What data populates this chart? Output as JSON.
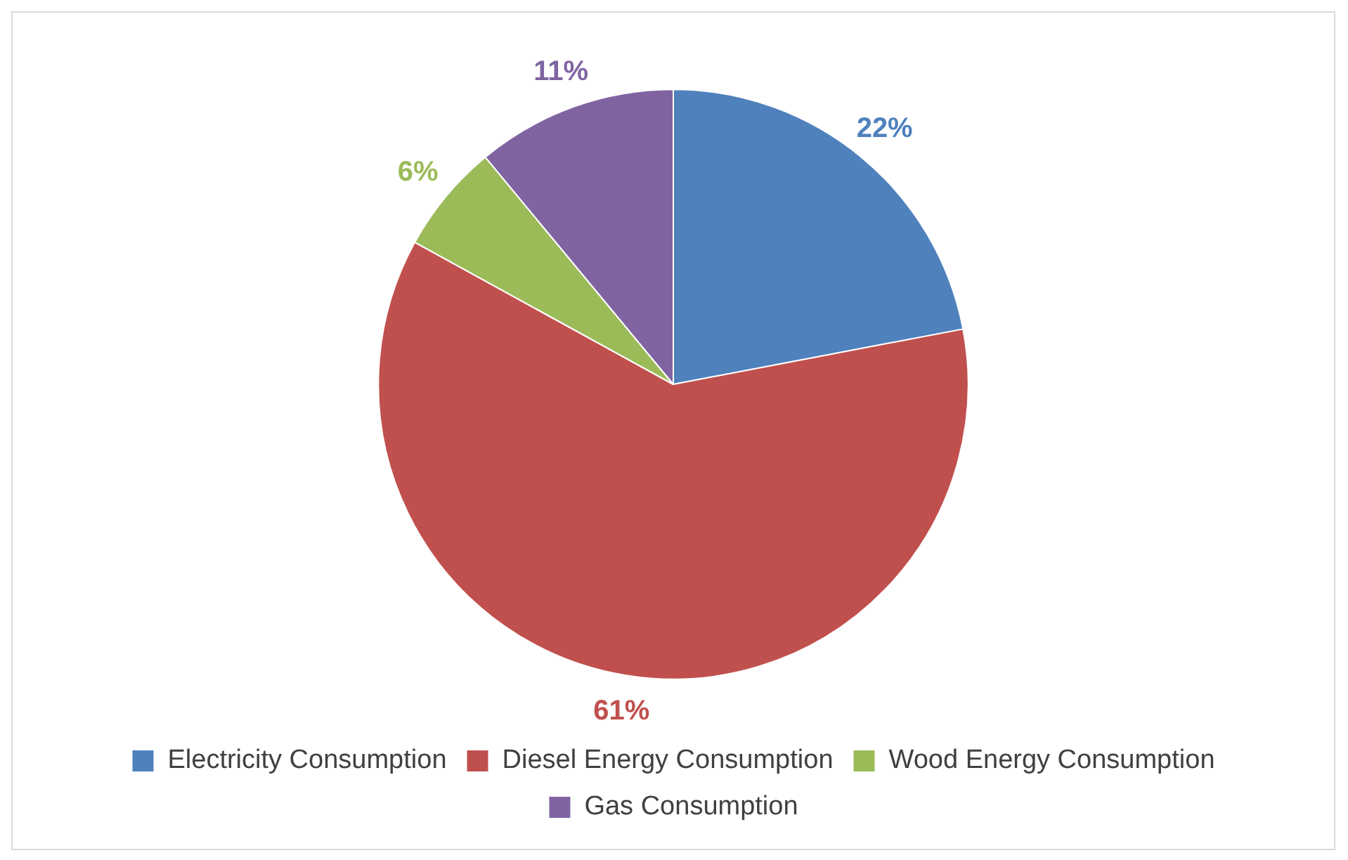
{
  "chart_data": {
    "type": "pie",
    "categories": [
      "Electricity Consumption",
      "Diesel Energy Consumption",
      "Wood Energy Consumption",
      "Gas Consumption"
    ],
    "values": [
      22,
      61,
      6,
      11
    ],
    "colors": [
      "#4f81bd",
      "#c0504d",
      "#9bbb59",
      "#8064a2"
    ],
    "value_labels": [
      "22%",
      "61%",
      "6%",
      "11%"
    ],
    "legend": "bottom"
  }
}
